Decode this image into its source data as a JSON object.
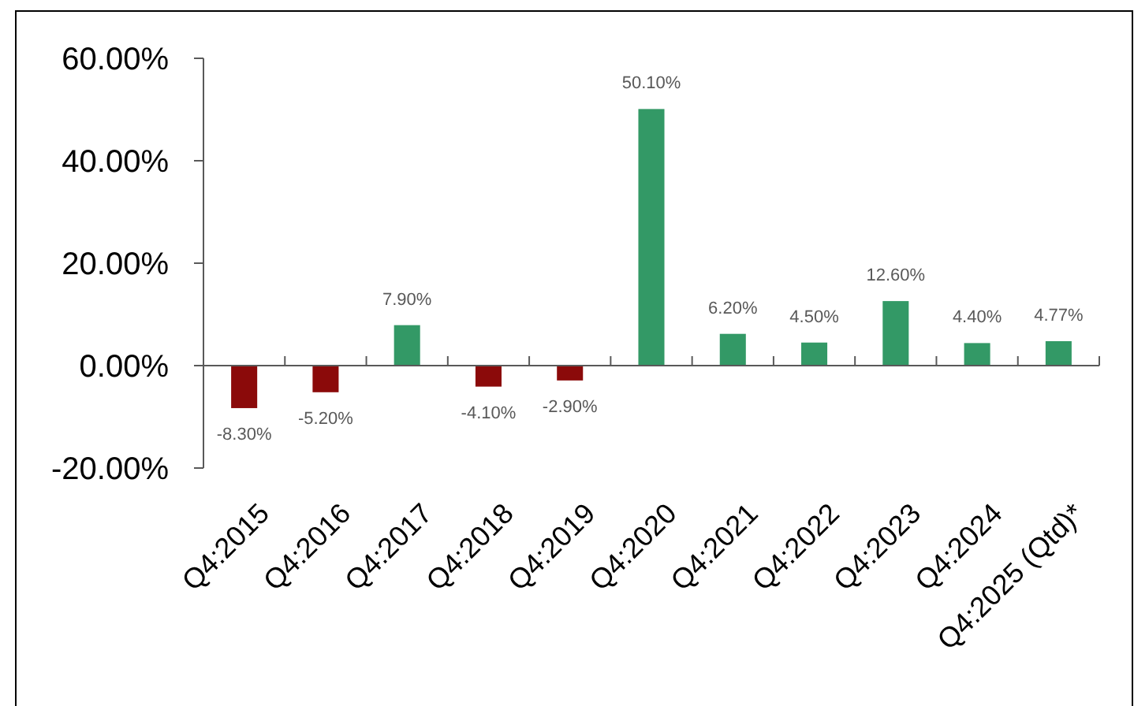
{
  "chart_data": {
    "type": "bar",
    "categories": [
      "Q4:2015",
      "Q4:2016",
      "Q4:2017",
      "Q4:2018",
      "Q4:2019",
      "Q4:2020",
      "Q4:2021",
      "Q4:2022",
      "Q4:2023",
      "Q4:2024",
      "Q4:2025 (Qtd)*"
    ],
    "values": [
      -8.3,
      -5.2,
      7.9,
      -4.1,
      -2.9,
      50.1,
      6.2,
      4.5,
      12.6,
      4.4,
      4.77
    ],
    "colors": [
      "#8b0a0a",
      "#8b0a0a",
      "#339966",
      "#8b0a0a",
      "#8b0a0a",
      "#339966",
      "#339966",
      "#339966",
      "#339966",
      "#339966",
      "#339966"
    ],
    "value_labels": [
      "-8.30%",
      "-5.20%",
      "7.90%",
      "-4.10%",
      "-2.90%",
      "50.10%",
      "6.20%",
      "4.50%",
      "12.60%",
      "4.40%",
      "4.77%"
    ],
    "ylim": [
      -20,
      60
    ],
    "yticks": [
      {
        "value": -20,
        "label": "-20.00%"
      },
      {
        "value": 0,
        "label": "0.00%"
      },
      {
        "value": 20,
        "label": "20.00%"
      },
      {
        "value": 40,
        "label": "40.00%"
      },
      {
        "value": 60,
        "label": "60.00%"
      }
    ]
  }
}
